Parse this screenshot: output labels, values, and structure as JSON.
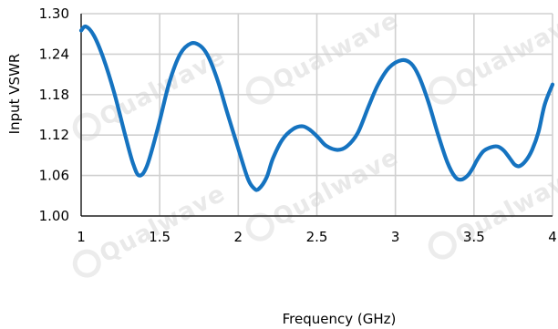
{
  "watermark": "Qualwave",
  "chart_data": {
    "type": "line",
    "xlabel": "Frequency (GHz)",
    "ylabel": "Input VSWR",
    "xlim": [
      1,
      4
    ],
    "ylim": [
      1.0,
      1.3
    ],
    "x_ticks": [
      "1",
      "1.5",
      "2",
      "2.5",
      "3",
      "3.5",
      "4"
    ],
    "y_ticks": [
      "1.00",
      "1.06",
      "1.12",
      "1.18",
      "1.24",
      "1.30"
    ],
    "grid": true,
    "series_color": "#1573c0",
    "series": [
      {
        "x": [
          1.0,
          1.03,
          1.08,
          1.14,
          1.21,
          1.28,
          1.33,
          1.37,
          1.42,
          1.49,
          1.56,
          1.63,
          1.7,
          1.76,
          1.81,
          1.87,
          1.93,
          2.0,
          2.06,
          2.1,
          2.13,
          2.18,
          2.22,
          2.28,
          2.35,
          2.41,
          2.46,
          2.51,
          2.56,
          2.63,
          2.69,
          2.76,
          2.83,
          2.89,
          2.96,
          3.04,
          3.1,
          3.15,
          3.21,
          3.27,
          3.33,
          3.38,
          3.42,
          3.46,
          3.49,
          3.52,
          3.56,
          3.61,
          3.65,
          3.69,
          3.73,
          3.76,
          3.79,
          3.83,
          3.87,
          3.91,
          3.95,
          4.0
        ],
        "y": [
          1.275,
          1.281,
          1.268,
          1.235,
          1.183,
          1.12,
          1.078,
          1.06,
          1.075,
          1.132,
          1.197,
          1.24,
          1.256,
          1.252,
          1.236,
          1.2,
          1.153,
          1.1,
          1.056,
          1.041,
          1.04,
          1.057,
          1.085,
          1.113,
          1.129,
          1.133,
          1.127,
          1.116,
          1.104,
          1.098,
          1.103,
          1.123,
          1.163,
          1.195,
          1.22,
          1.231,
          1.226,
          1.207,
          1.169,
          1.122,
          1.08,
          1.058,
          1.054,
          1.06,
          1.07,
          1.083,
          1.096,
          1.102,
          1.103,
          1.097,
          1.085,
          1.076,
          1.074,
          1.082,
          1.098,
          1.124,
          1.165,
          1.195
        ]
      }
    ]
  }
}
